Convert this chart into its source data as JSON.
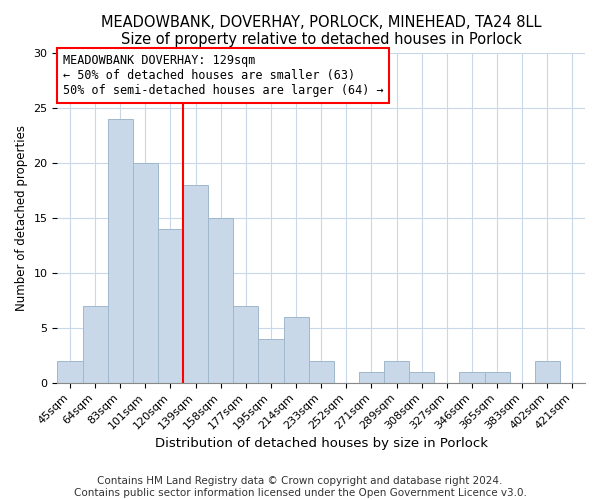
{
  "title": "MEADOWBANK, DOVERHAY, PORLOCK, MINEHEAD, TA24 8LL",
  "subtitle": "Size of property relative to detached houses in Porlock",
  "xlabel": "Distribution of detached houses by size in Porlock",
  "ylabel": "Number of detached properties",
  "bar_labels": [
    "45sqm",
    "64sqm",
    "83sqm",
    "101sqm",
    "120sqm",
    "139sqm",
    "158sqm",
    "177sqm",
    "195sqm",
    "214sqm",
    "233sqm",
    "252sqm",
    "271sqm",
    "289sqm",
    "308sqm",
    "327sqm",
    "346sqm",
    "365sqm",
    "383sqm",
    "402sqm",
    "421sqm"
  ],
  "bar_values": [
    2,
    7,
    24,
    20,
    14,
    18,
    15,
    7,
    4,
    6,
    2,
    0,
    1,
    2,
    1,
    0,
    1,
    1,
    0,
    2,
    0
  ],
  "bar_color": "#c8d8e8",
  "bar_edge_color": "#a0b8cc",
  "vline_x_idx": 4.5,
  "vline_color": "red",
  "annotation_text": "MEADOWBANK DOVERHAY: 129sqm\n← 50% of detached houses are smaller (63)\n50% of semi-detached houses are larger (64) →",
  "annotation_box_color": "white",
  "annotation_box_edge": "red",
  "ylim": [
    0,
    30
  ],
  "yticks": [
    0,
    5,
    10,
    15,
    20,
    25,
    30
  ],
  "footer1": "Contains HM Land Registry data © Crown copyright and database right 2024.",
  "footer2": "Contains public sector information licensed under the Open Government Licence v3.0.",
  "background_color": "white",
  "plot_bg_color": "white",
  "title_fontsize": 10.5,
  "xlabel_fontsize": 9.5,
  "ylabel_fontsize": 8.5,
  "tick_fontsize": 8,
  "footer_fontsize": 7.5,
  "annotation_fontsize": 8.5
}
